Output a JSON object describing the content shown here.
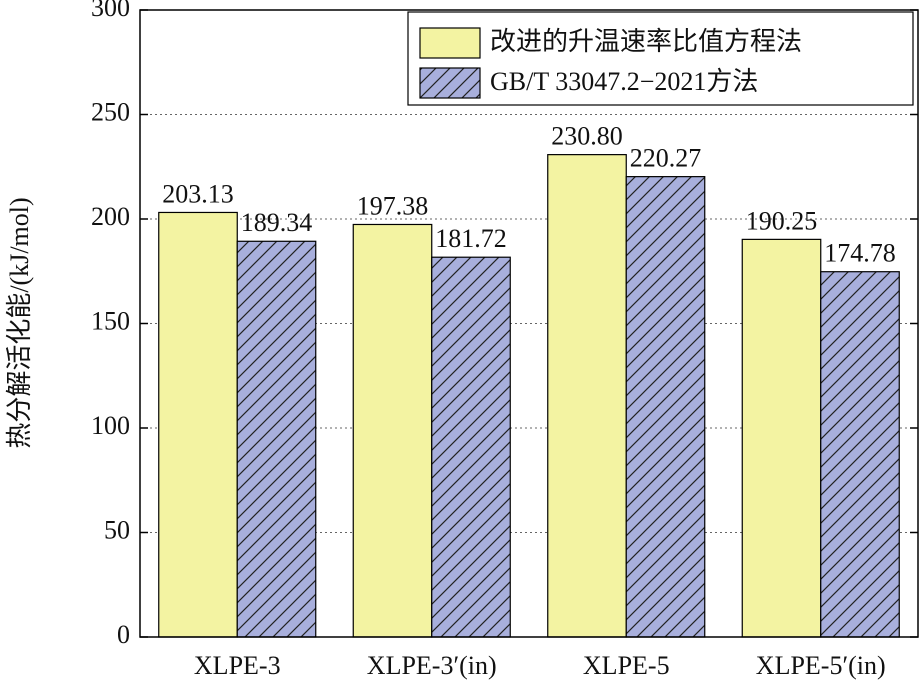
{
  "chart_data": {
    "type": "bar",
    "y_label": "热分解活化能/(kJ/mol)",
    "categories": [
      "XLPE-3",
      "XLPE-3′(in)",
      "XLPE-5",
      "XLPE-5′(in)"
    ],
    "series": [
      {
        "name": "改进的升温速率比值方程法",
        "color": "#f3f3a2",
        "values": [
          203.13,
          197.38,
          230.8,
          190.25
        ],
        "value_labels": [
          "203.13",
          "197.38",
          "230.80",
          "190.25"
        ]
      },
      {
        "name": "GB/T 33047.2−2021方法",
        "color": "#a8afdc",
        "hatch": "//",
        "values": [
          189.34,
          181.72,
          220.27,
          174.78
        ],
        "value_labels": [
          "189.34",
          "181.72",
          "220.27",
          "174.78"
        ]
      }
    ],
    "ylim": [
      0,
      300
    ],
    "yticks": [
      0,
      50,
      100,
      150,
      200,
      250,
      300
    ],
    "grid": true,
    "legend": "upper right"
  }
}
